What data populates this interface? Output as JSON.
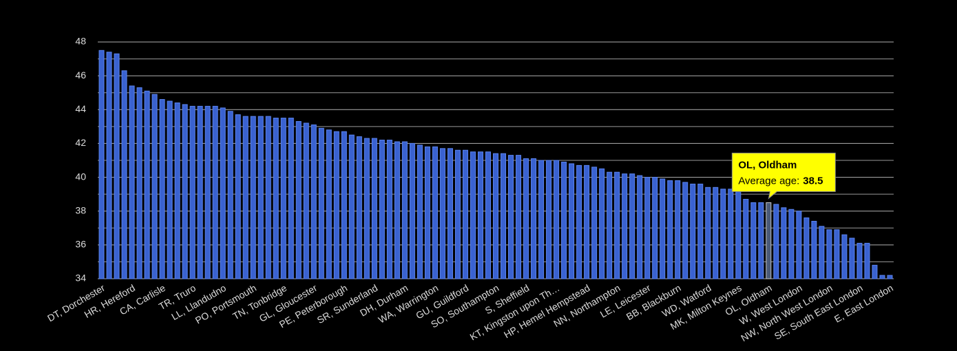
{
  "chart_data": {
    "type": "bar",
    "categories": [
      "DT, Dorchester",
      null,
      null,
      null,
      "HR, Hereford",
      null,
      null,
      null,
      "CA, Carlisle",
      null,
      null,
      null,
      "TR, Truro",
      null,
      null,
      null,
      "LL, Llandudno",
      null,
      null,
      null,
      "PO, Portsmouth",
      null,
      null,
      null,
      "TN, Tonbridge",
      null,
      null,
      null,
      "GL, Gloucester",
      null,
      null,
      null,
      "PE, Peterborough",
      null,
      null,
      null,
      "SR, Sunderland",
      null,
      null,
      null,
      "DH, Durham",
      null,
      null,
      null,
      "WA, Warrington",
      null,
      null,
      null,
      "GU, Guildford",
      null,
      null,
      null,
      "SO, Southampton",
      null,
      null,
      null,
      "S, Sheffield",
      null,
      null,
      null,
      "KT, Kingston upon Th…",
      null,
      null,
      null,
      "HP, Hemel Hempstead",
      null,
      null,
      null,
      "NN, Northampton",
      null,
      null,
      null,
      "LE, Leicester",
      null,
      null,
      null,
      "BB, Blackburn",
      null,
      null,
      null,
      "WD, Watford",
      null,
      null,
      null,
      "MK, Milton Keynes",
      null,
      null,
      null,
      "OL, Oldham",
      null,
      null,
      null,
      "W, West London",
      null,
      null,
      null,
      "NW, North West London",
      null,
      null,
      null,
      "SE, South East London",
      null,
      null,
      null,
      "E, East London"
    ],
    "values": [
      47.5,
      47.4,
      47.3,
      46.3,
      45.4,
      45.3,
      45.1,
      44.9,
      44.6,
      44.5,
      44.4,
      44.3,
      44.2,
      44.2,
      44.2,
      44.2,
      44.1,
      43.9,
      43.7,
      43.6,
      43.6,
      43.6,
      43.6,
      43.5,
      43.5,
      43.5,
      43.3,
      43.2,
      43.1,
      42.9,
      42.8,
      42.7,
      42.7,
      42.5,
      42.4,
      42.3,
      42.3,
      42.2,
      42.2,
      42.1,
      42.1,
      42.0,
      41.9,
      41.8,
      41.8,
      41.7,
      41.7,
      41.6,
      41.6,
      41.5,
      41.5,
      41.5,
      41.4,
      41.4,
      41.3,
      41.3,
      41.1,
      41.1,
      41.0,
      41.0,
      41.0,
      40.9,
      40.8,
      40.7,
      40.7,
      40.6,
      40.5,
      40.3,
      40.3,
      40.2,
      40.2,
      40.1,
      40.0,
      40.0,
      39.9,
      39.8,
      39.8,
      39.7,
      39.6,
      39.6,
      39.4,
      39.4,
      39.3,
      39.3,
      39.2,
      38.7,
      38.5,
      38.5,
      38.5,
      38.4,
      38.2,
      38.1,
      38.0,
      37.6,
      37.4,
      37.1,
      36.9,
      36.9,
      36.6,
      36.4,
      36.1,
      36.1,
      34.8,
      34.2,
      34.2
    ],
    "color": "#3a62d0",
    "highlight_color": "#4a5a78",
    "ylim": [
      34,
      48
    ],
    "yticks": [
      34,
      36,
      38,
      40,
      42,
      44,
      46,
      48
    ],
    "yminorticks": [
      35,
      37,
      39,
      41,
      43,
      45,
      47
    ],
    "grid": true,
    "tooltip": {
      "index": 88,
      "label": "Average age:"
    }
  }
}
